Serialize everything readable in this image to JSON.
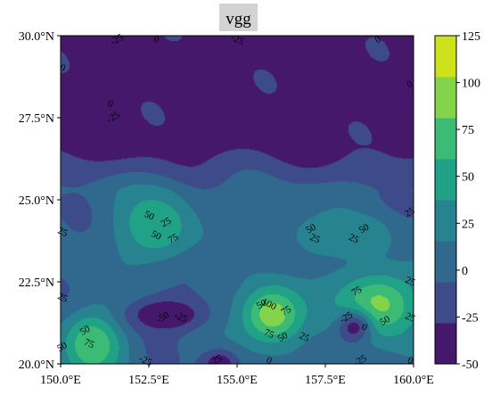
{
  "chart_data": {
    "type": "heatmap",
    "subtype": "filled-contour",
    "title": "vgg",
    "x_ticks": [
      "150.0°E",
      "152.5°E",
      "155.0°E",
      "157.5°E",
      "160.0°E"
    ],
    "x_tick_values": [
      150.0,
      152.5,
      155.0,
      157.5,
      160.0
    ],
    "y_ticks": [
      "20.0°N",
      "22.5°N",
      "25.0°N",
      "27.5°N",
      "30.0°N"
    ],
    "y_tick_values": [
      20.0,
      22.5,
      25.0,
      27.5,
      30.0
    ],
    "xlim": [
      150.0,
      160.0
    ],
    "ylim": [
      20.0,
      30.0
    ],
    "levels": [
      -50,
      -25,
      0,
      25,
      50,
      75,
      100,
      125
    ],
    "colorbar": {
      "ticks": [
        "125",
        "100",
        "75",
        "50",
        "25",
        "0",
        "-25",
        "-50"
      ],
      "colors": [
        "#46186b",
        "#3e4b8a",
        "#31688e",
        "#26838f",
        "#21a185",
        "#3bbb75",
        "#84d44b",
        "#cde11d"
      ]
    },
    "features": [
      {
        "lon": 152.7,
        "lat": 24.2,
        "value": 75,
        "sigma_lon": 0.75,
        "sigma_lat": 0.75
      },
      {
        "lon": 156.0,
        "lat": 21.5,
        "value": 118,
        "sigma_lon": 0.65,
        "sigma_lat": 0.65
      },
      {
        "lon": 159.0,
        "lat": 21.8,
        "value": 108,
        "sigma_lon": 0.85,
        "sigma_lat": 0.75
      },
      {
        "lon": 150.9,
        "lat": 20.6,
        "value": 100,
        "sigma_lon": 0.6,
        "sigma_lat": 0.7
      },
      {
        "lon": 157.3,
        "lat": 23.9,
        "value": 45,
        "sigma_lon": 0.6,
        "sigma_lat": 0.45
      },
      {
        "lon": 158.6,
        "lat": 23.9,
        "value": 45,
        "sigma_lon": 0.6,
        "sigma_lat": 0.45
      },
      {
        "lon": 153.0,
        "lat": 21.5,
        "value": -55,
        "sigma_lon": 0.75,
        "sigma_lat": 0.35
      },
      {
        "lon": 158.3,
        "lat": 21.1,
        "value": -35,
        "sigma_lon": 0.35,
        "sigma_lat": 0.35
      },
      {
        "lon": 154.5,
        "lat": 20.0,
        "value": -45,
        "sigma_lon": 0.35,
        "sigma_lat": 0.3
      },
      {
        "lon": 150.5,
        "lat": 27.9,
        "value": -30,
        "sigma_lon": 0.4,
        "sigma_lat": 0.4
      }
    ],
    "contour_labels": [
      {
        "text": "0",
        "lon": 152.7,
        "lat": 29.95
      },
      {
        "text": "-25",
        "lon": 151.6,
        "lat": 29.95
      },
      {
        "text": "-25",
        "lon": 155.0,
        "lat": 29.95
      },
      {
        "text": "0",
        "lon": 159.0,
        "lat": 29.95
      },
      {
        "text": "0",
        "lon": 150.0,
        "lat": 29.0
      },
      {
        "text": "0",
        "lon": 159.9,
        "lat": 28.5
      },
      {
        "text": "0",
        "lon": 151.4,
        "lat": 27.9
      },
      {
        "text": "-25",
        "lon": 151.5,
        "lat": 27.5
      },
      {
        "text": "50",
        "lon": 152.5,
        "lat": 24.5
      },
      {
        "text": "25",
        "lon": 153.0,
        "lat": 24.3
      },
      {
        "text": "50",
        "lon": 152.7,
        "lat": 23.9
      },
      {
        "text": "75",
        "lon": 153.2,
        "lat": 23.8
      },
      {
        "text": "25",
        "lon": 150.0,
        "lat": 24.0
      },
      {
        "text": "50",
        "lon": 157.1,
        "lat": 24.1
      },
      {
        "text": "25",
        "lon": 157.2,
        "lat": 23.8
      },
      {
        "text": "50",
        "lon": 158.6,
        "lat": 24.1
      },
      {
        "text": "25",
        "lon": 158.3,
        "lat": 23.8
      },
      {
        "text": "25",
        "lon": 159.9,
        "lat": 24.6
      },
      {
        "text": "25",
        "lon": 150.0,
        "lat": 22.0
      },
      {
        "text": "75",
        "lon": 158.4,
        "lat": 22.2
      },
      {
        "text": "25",
        "lon": 159.9,
        "lat": 22.5
      },
      {
        "text": "50",
        "lon": 155.7,
        "lat": 21.8
      },
      {
        "text": "100",
        "lon": 155.9,
        "lat": 21.8
      },
      {
        "text": "75",
        "lon": 156.4,
        "lat": 21.6
      },
      {
        "text": "75",
        "lon": 155.9,
        "lat": 20.9
      },
      {
        "text": "50",
        "lon": 156.3,
        "lat": 20.8
      },
      {
        "text": "25",
        "lon": 156.9,
        "lat": 20.8
      },
      {
        "text": "-50",
        "lon": 152.9,
        "lat": 21.4
      },
      {
        "text": "-25",
        "lon": 153.4,
        "lat": 21.4
      },
      {
        "text": "-25",
        "lon": 158.1,
        "lat": 21.4
      },
      {
        "text": "0",
        "lon": 158.6,
        "lat": 21.1
      },
      {
        "text": "50",
        "lon": 159.2,
        "lat": 21.3
      },
      {
        "text": "25",
        "lon": 159.9,
        "lat": 21.4
      },
      {
        "text": "50",
        "lon": 150.7,
        "lat": 21.0
      },
      {
        "text": "75",
        "lon": 150.8,
        "lat": 20.6
      },
      {
        "text": "50",
        "lon": 150.0,
        "lat": 20.5
      },
      {
        "text": "-25",
        "lon": 152.4,
        "lat": 20.0
      },
      {
        "text": "-25",
        "lon": 154.4,
        "lat": 20.0
      },
      {
        "text": "0",
        "lon": 155.9,
        "lat": 20.0
      },
      {
        "text": "-25",
        "lon": 158.5,
        "lat": 20.0
      },
      {
        "text": "0",
        "lon": 159.9,
        "lat": 20.0
      }
    ]
  }
}
